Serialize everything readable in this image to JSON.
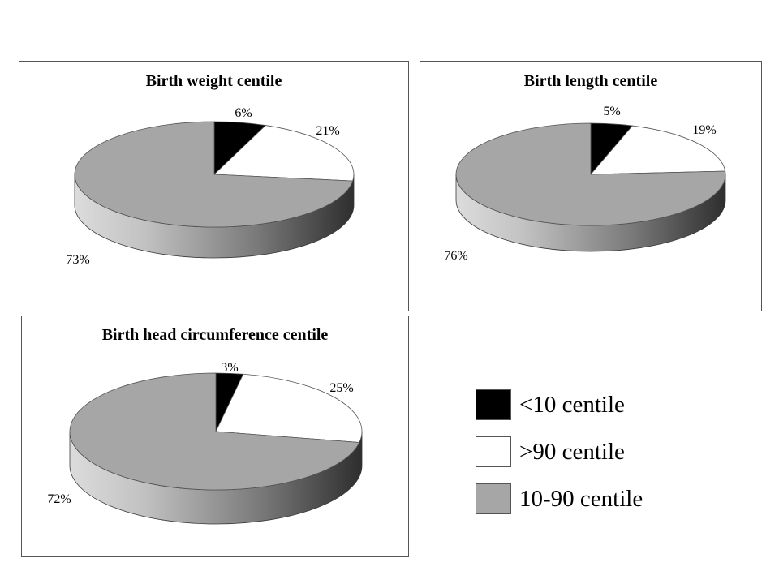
{
  "colors": {
    "below_10": "#000000",
    "above_90": "#ffffff",
    "between": "#a6a6a6"
  },
  "legend": [
    {
      "label": "<10 centile",
      "color": "#000000"
    },
    {
      "label": ">90 centile",
      "color": "#ffffff"
    },
    {
      "label": "10-90 centile",
      "color": "#a6a6a6"
    }
  ],
  "chart_data": [
    {
      "type": "pie",
      "title": "Birth weight centile",
      "categories": [
        "<10 centile",
        ">90 centile",
        "10-90 centile"
      ],
      "values": [
        6,
        21,
        73
      ],
      "labels": [
        "6%",
        "21%",
        "73%"
      ],
      "style": "3d"
    },
    {
      "type": "pie",
      "title": "Birth length centile",
      "categories": [
        "<10 centile",
        ">90 centile",
        "10-90 centile"
      ],
      "values": [
        5,
        19,
        76
      ],
      "labels": [
        "5%",
        "19%",
        "76%"
      ],
      "style": "3d"
    },
    {
      "type": "pie",
      "title": "Birth head circumference centile",
      "categories": [
        "<10 centile",
        ">90 centile",
        "10-90 centile"
      ],
      "values": [
        3,
        25,
        72
      ],
      "labels": [
        "3%",
        "25%",
        "72%"
      ],
      "style": "3d"
    }
  ]
}
